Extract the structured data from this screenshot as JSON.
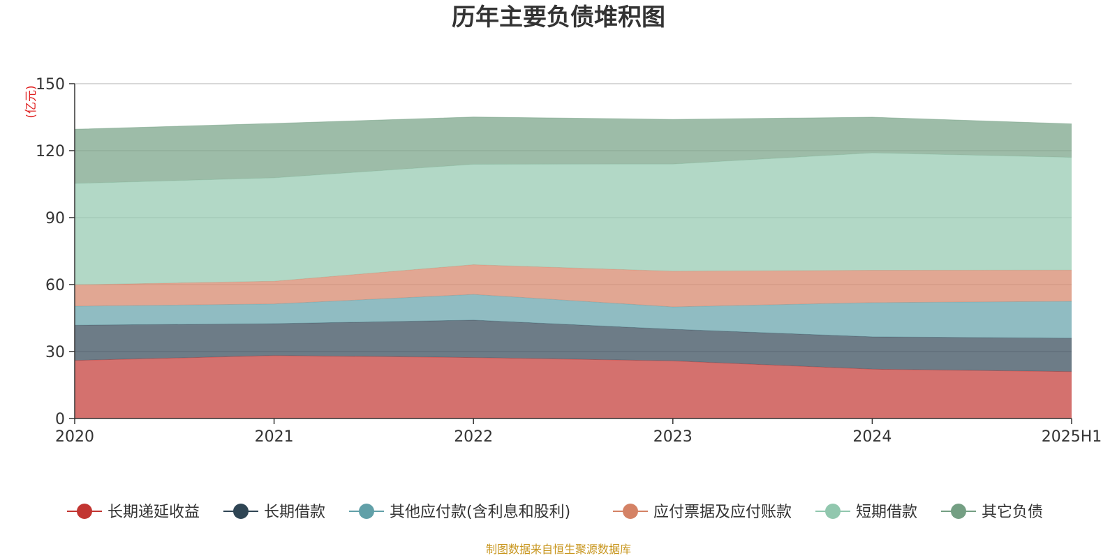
{
  "chart_data": {
    "type": "area",
    "stacked": true,
    "title": "历年主要负债堆积图",
    "unit_label": "(亿元)",
    "x": [
      "2020",
      "2021",
      "2022",
      "2023",
      "2024",
      "2025H1"
    ],
    "ylim": [
      0,
      150
    ],
    "yticks": [
      "0",
      "30",
      "60",
      "90",
      "120",
      "150"
    ],
    "grid": true,
    "legend_position": "bottom",
    "series": [
      {
        "name": "长期递延收益",
        "color": "#c23531",
        "values": [
          26,
          28.2,
          27.3,
          25.8,
          22.1,
          21.0
        ]
      },
      {
        "name": "长期借款",
        "color": "#2f4554",
        "values": [
          15.8,
          14.3,
          16.8,
          14.2,
          14.5,
          15.0
        ]
      },
      {
        "name": "其他应付款(含利息和股利)",
        "color": "#61a0a8",
        "values": [
          8.5,
          8.8,
          11.5,
          10.0,
          15.3,
          16.5
        ]
      },
      {
        "name": "应付票据及应付账款",
        "color": "#d48265",
        "values": [
          9.6,
          10.2,
          13.3,
          16.0,
          14.5,
          14.0
        ]
      },
      {
        "name": "短期借款",
        "color": "#91c7ae",
        "values": [
          45.4,
          46.3,
          45.0,
          48.0,
          52.6,
          50.5
        ]
      },
      {
        "name": "其它负债",
        "color": "#749f83",
        "values": [
          24.3,
          24.4,
          21.2,
          20.0,
          16.0,
          15.0
        ]
      }
    ],
    "source": "制图数据来自恒生聚源数据库"
  }
}
